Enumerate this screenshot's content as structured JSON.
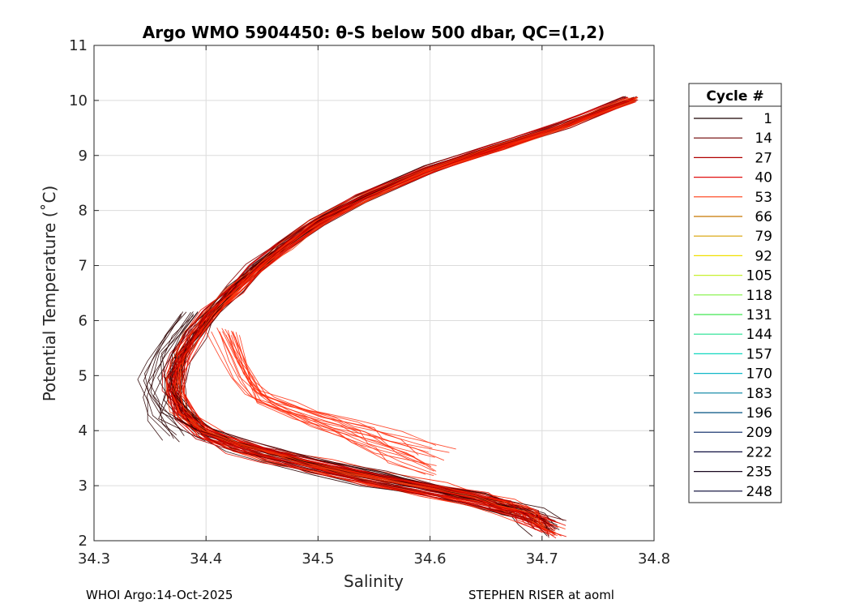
{
  "chart_data": {
    "type": "line",
    "title": "Argo WMO 5904450: θ-S below 500 dbar,  QC=(1,2)",
    "xlabel": "Salinity",
    "ylabel": "Potential Temperature (˚C)",
    "xlim": [
      34.3,
      34.8
    ],
    "ylim": [
      2,
      11
    ],
    "x_ticks": [
      "34.3",
      "34.4",
      "34.5",
      "34.6",
      "34.7",
      "34.8"
    ],
    "y_ticks": [
      "2",
      "3",
      "4",
      "5",
      "6",
      "7",
      "8",
      "9",
      "10",
      "11"
    ],
    "grid": true,
    "legend_title": "Cycle #",
    "legend_position": "right-outside",
    "legend": [
      {
        "label": "1",
        "color": "#1a0000"
      },
      {
        "label": "14",
        "color": "#6e0000"
      },
      {
        "label": "27",
        "color": "#b00000"
      },
      {
        "label": "40",
        "color": "#e01010"
      },
      {
        "label": "53",
        "color": "#ff3a10"
      },
      {
        "label": "66",
        "color": "#c87800"
      },
      {
        "label": "79",
        "color": "#d8a000"
      },
      {
        "label": "92",
        "color": "#f0e000"
      },
      {
        "label": "105",
        "color": "#c8f030"
      },
      {
        "label": "118",
        "color": "#80f040"
      },
      {
        "label": "131",
        "color": "#40e850"
      },
      {
        "label": "144",
        "color": "#20e090"
      },
      {
        "label": "157",
        "color": "#10d8c0"
      },
      {
        "label": "170",
        "color": "#10b8c8"
      },
      {
        "label": "183",
        "color": "#0080a0"
      },
      {
        "label": "196",
        "color": "#005080"
      },
      {
        "label": "209",
        "color": "#002060"
      },
      {
        "label": "222",
        "color": "#101040"
      },
      {
        "label": "235",
        "color": "#180820"
      },
      {
        "label": "248",
        "color": "#000030"
      }
    ],
    "profile_shape": {
      "salinity": [
        34.78,
        34.72,
        34.66,
        34.6,
        34.54,
        34.5,
        34.47,
        34.445,
        34.425,
        34.405,
        34.39,
        34.378,
        34.372,
        34.373,
        34.38,
        34.4,
        34.43,
        34.46,
        34.5,
        34.55,
        34.6,
        34.64,
        34.67,
        34.69,
        34.708
      ],
      "temperature": [
        10.02,
        9.55,
        9.15,
        8.75,
        8.22,
        7.78,
        7.35,
        6.95,
        6.55,
        6.15,
        5.75,
        5.35,
        5.0,
        4.65,
        4.3,
        3.95,
        3.72,
        3.55,
        3.35,
        3.12,
        2.92,
        2.75,
        2.6,
        2.45,
        2.22
      ]
    },
    "branch_shape": {
      "salinity": [
        34.41,
        34.42,
        34.43,
        34.44,
        34.47,
        34.5,
        34.53,
        34.56,
        34.6
      ],
      "temperature": [
        5.8,
        5.3,
        4.9,
        4.6,
        4.35,
        4.15,
        3.95,
        3.7,
        3.45
      ]
    },
    "profile_count": 60
  },
  "footer": {
    "left": "WHOI Argo:14-Oct-2025",
    "right": "STEPHEN RISER at aoml"
  }
}
